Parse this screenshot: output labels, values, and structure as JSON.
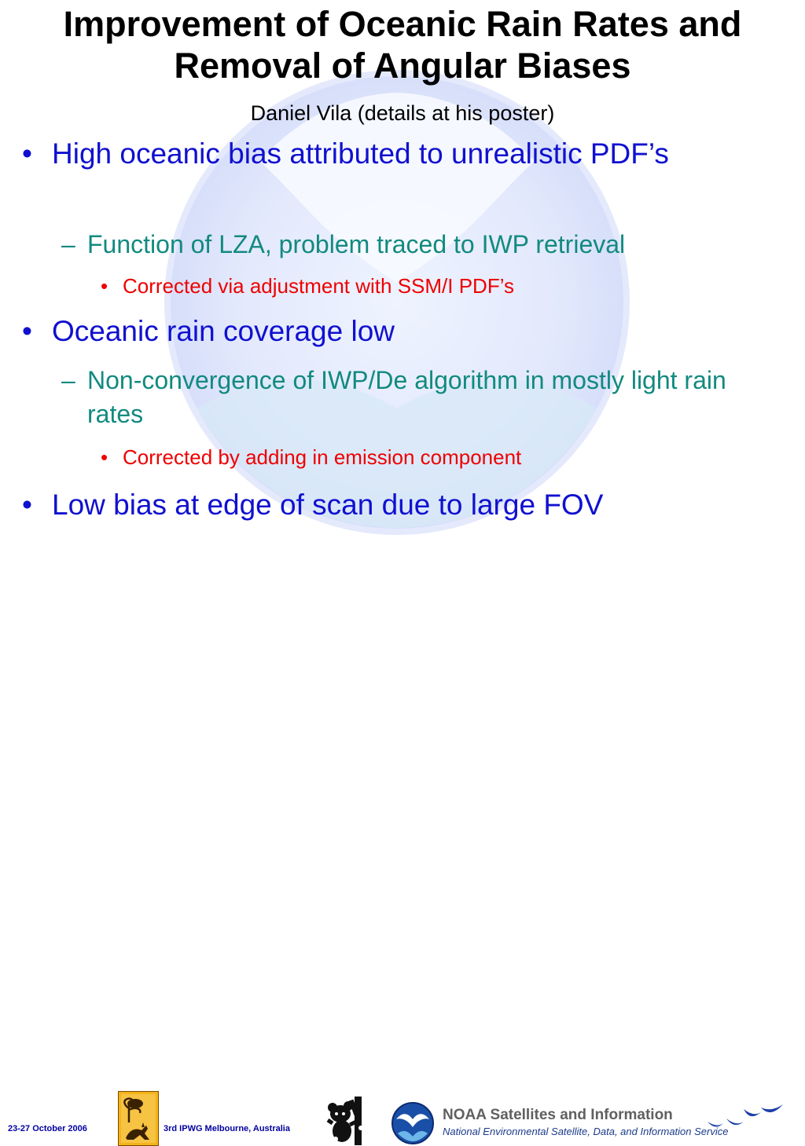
{
  "title_line1": "Improvement of Oceanic Rain Rates and",
  "title_line2": "Removal of Angular Biases",
  "subtitle": "Daniel Vila (details at his poster)",
  "bullets": {
    "b1": "High oceanic bias attributed to unrealistic PDF’s",
    "b1_sub": "Function of LZA, problem traced to IWP retrieval",
    "b1_sub_sub": "Corrected via adjustment with SSM/I PDF’s",
    "b2": "Oceanic rain coverage low",
    "b2_sub": "Non-convergence of IWP/De algorithm in mostly light rain rates",
    "b2_sub_sub": "Corrected by adding in emission component",
    "b3": "Low bias at edge of scan due to large FOV"
  },
  "markers": {
    "level1": "•",
    "level2": "–",
    "level3": "•"
  },
  "footer": {
    "date": "23-27 October 2006",
    "event": "3rd IPWG  Melbourne, Australia",
    "noaa_title": "NOAA Satellites and Information",
    "noaa_subtitle": "National Environmental Satellite, Data, and Information Service"
  },
  "icons": [
    "noaa-watermark-icon",
    "ipwg-logo-icon",
    "koala-logo-icon",
    "noaa-logo-icon",
    "birds-logo-icon"
  ],
  "colors": {
    "level1": "#1010d0",
    "level2": "#128a80",
    "level3": "#ee0000",
    "watermark": "#dde3fb"
  }
}
